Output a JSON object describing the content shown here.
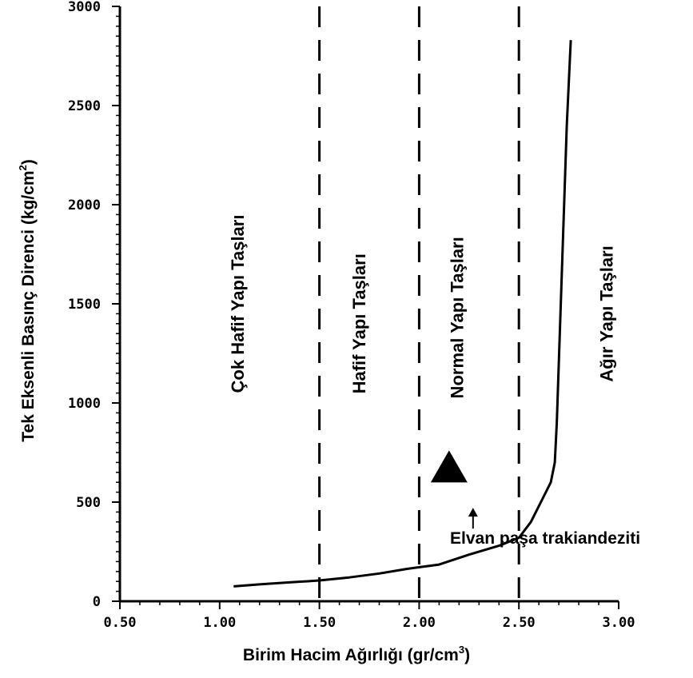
{
  "chart_data": {
    "type": "line",
    "xlabel": "Birim Hacim Ağırlığı (gr/cm",
    "xlabel_sup": "3",
    "xlabel_end": ")",
    "ylabel": "Tek Eksenli Basınç Direnci (kg/cm",
    "ylabel_sup": "2",
    "ylabel_end": ")",
    "xlim": [
      0.5,
      3.0
    ],
    "ylim": [
      0,
      3000
    ],
    "x_ticks": [
      "0.50",
      "1.00",
      "1.50",
      "2.00",
      "2.50",
      "3.00"
    ],
    "y_ticks": [
      "0",
      "500",
      "1000",
      "1500",
      "2000",
      "2500",
      "3000"
    ],
    "boundaries": [
      1.5,
      2.0,
      2.5
    ],
    "zones": [
      {
        "label": "Çok Hafif Yapı Taşları",
        "x": 1.12,
        "y": 1500
      },
      {
        "label": "Hafif Yapı Taşları",
        "x": 1.73,
        "y": 1400
      },
      {
        "label": "Normal Yapı Taşları",
        "x": 2.22,
        "y": 1430
      },
      {
        "label": "Ağır Yapı Taşları",
        "x": 2.97,
        "y": 1450
      }
    ],
    "curve": {
      "x": [
        1.07,
        1.2,
        1.35,
        1.5,
        1.65,
        1.8,
        1.95,
        2.1,
        2.25,
        2.4,
        2.5,
        2.56,
        2.62,
        2.66,
        2.68,
        2.69,
        2.7,
        2.72,
        2.74,
        2.76
      ],
      "y": [
        75,
        85,
        95,
        105,
        120,
        140,
        165,
        185,
        235,
        280,
        320,
        400,
        520,
        600,
        700,
        900,
        1200,
        1800,
        2400,
        2830
      ]
    },
    "point": {
      "x": 2.15,
      "y": 680,
      "marker": "triangle"
    },
    "annotation": {
      "text": "Elvan paşa trakiandeziti",
      "x": 2.27,
      "y": 560
    }
  }
}
